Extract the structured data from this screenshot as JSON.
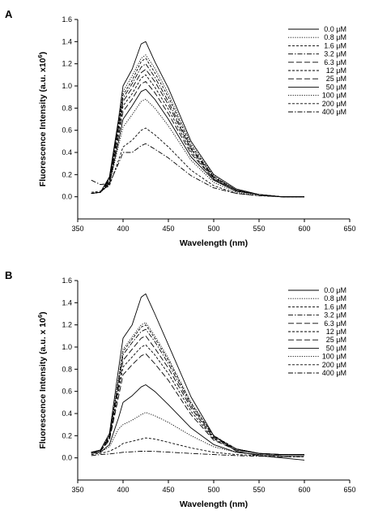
{
  "chart_data": [
    {
      "panel_label": "A",
      "type": "line",
      "xlabel": "Wavelength (nm)",
      "ylabel": "Fluorescence Intensity (a.u. x10",
      "ylabel_sup": "6",
      "ylabel_close": ")",
      "xlim": [
        350,
        650
      ],
      "ylim": [
        -0.2,
        1.6
      ],
      "xticks": [
        350,
        400,
        450,
        500,
        550,
        600,
        650
      ],
      "yticks": [
        0.0,
        0.2,
        0.4,
        0.6,
        0.8,
        1.0,
        1.2,
        1.4,
        1.6
      ],
      "legend_position": "top-right",
      "x": [
        365,
        375,
        385,
        395,
        400,
        410,
        420,
        425,
        435,
        450,
        475,
        500,
        525,
        550,
        575,
        600
      ],
      "series": [
        {
          "name": "0.0 μM",
          "style": "solid",
          "values": [
            0.03,
            0.04,
            0.18,
            0.7,
            1.0,
            1.15,
            1.38,
            1.4,
            1.22,
            0.98,
            0.5,
            0.2,
            0.07,
            0.02,
            0.0,
            0.0
          ]
        },
        {
          "name": "0.8 μM",
          "style": "dotted",
          "values": [
            0.03,
            0.04,
            0.17,
            0.68,
            0.95,
            1.09,
            1.25,
            1.28,
            1.16,
            0.93,
            0.48,
            0.19,
            0.06,
            0.02,
            0.0,
            0.0
          ]
        },
        {
          "name": "1.6 μM",
          "style": "dash-short",
          "values": [
            0.03,
            0.04,
            0.16,
            0.66,
            0.92,
            1.05,
            1.22,
            1.25,
            1.12,
            0.9,
            0.46,
            0.18,
            0.06,
            0.02,
            0.0,
            0.0
          ]
        },
        {
          "name": "3.2 μM",
          "style": "dash-dot",
          "values": [
            0.03,
            0.04,
            0.16,
            0.64,
            0.89,
            1.02,
            1.17,
            1.2,
            1.08,
            0.86,
            0.44,
            0.18,
            0.06,
            0.02,
            0.0,
            0.0
          ]
        },
        {
          "name": "6.3 μM",
          "style": "dash-long",
          "values": [
            0.03,
            0.04,
            0.15,
            0.62,
            0.86,
            0.98,
            1.12,
            1.15,
            1.04,
            0.83,
            0.43,
            0.17,
            0.06,
            0.02,
            0.0,
            0.0
          ]
        },
        {
          "name": "12 μM",
          "style": "dash-short",
          "values": [
            0.03,
            0.04,
            0.14,
            0.58,
            0.82,
            0.93,
            1.07,
            1.1,
            0.99,
            0.79,
            0.41,
            0.16,
            0.05,
            0.02,
            0.0,
            0.0
          ]
        },
        {
          "name": "25 μM",
          "style": "dash-long",
          "values": [
            0.03,
            0.04,
            0.13,
            0.55,
            0.77,
            0.88,
            1.02,
            1.04,
            0.94,
            0.75,
            0.39,
            0.16,
            0.05,
            0.02,
            0.0,
            0.0
          ]
        },
        {
          "name": "50 μM",
          "style": "solid",
          "values": [
            0.03,
            0.04,
            0.12,
            0.5,
            0.7,
            0.82,
            0.95,
            0.97,
            0.88,
            0.7,
            0.36,
            0.15,
            0.05,
            0.02,
            0.0,
            0.0
          ]
        },
        {
          "name": "100 μM",
          "style": "dotted",
          "values": [
            0.03,
            0.04,
            0.11,
            0.46,
            0.63,
            0.74,
            0.86,
            0.88,
            0.8,
            0.64,
            0.33,
            0.13,
            0.04,
            0.01,
            0.0,
            0.0
          ]
        },
        {
          "name": "200 μM",
          "style": "dash-short",
          "values": [
            0.04,
            0.05,
            0.1,
            0.33,
            0.45,
            0.51,
            0.6,
            0.62,
            0.56,
            0.45,
            0.24,
            0.1,
            0.03,
            0.01,
            0.0,
            0.0
          ]
        },
        {
          "name": "400 μM",
          "style": "dash-dot",
          "values": [
            0.15,
            0.11,
            0.12,
            0.3,
            0.4,
            0.4,
            0.46,
            0.48,
            0.43,
            0.35,
            0.19,
            0.08,
            0.03,
            0.01,
            0.0,
            0.0
          ]
        }
      ]
    },
    {
      "panel_label": "B",
      "type": "line",
      "xlabel": "Wavelength (nm)",
      "ylabel": "Fluorescence Intensity (a.u. x 10",
      "ylabel_sup": "6",
      "ylabel_close": ")",
      "xlim": [
        350,
        650
      ],
      "ylim": [
        -0.2,
        1.6
      ],
      "xticks": [
        350,
        400,
        450,
        500,
        550,
        600,
        650
      ],
      "yticks": [
        0.0,
        0.2,
        0.4,
        0.6,
        0.8,
        1.0,
        1.2,
        1.4,
        1.6
      ],
      "legend_position": "top-right",
      "x": [
        365,
        375,
        385,
        395,
        400,
        410,
        420,
        425,
        435,
        450,
        475,
        500,
        525,
        550,
        575,
        600
      ],
      "series": [
        {
          "name": "0.0 μM",
          "style": "solid",
          "values": [
            0.05,
            0.07,
            0.22,
            0.8,
            1.08,
            1.2,
            1.45,
            1.48,
            1.3,
            1.02,
            0.55,
            0.2,
            0.06,
            0.02,
            0.0,
            -0.02
          ]
        },
        {
          "name": "0.8 μM",
          "style": "dotted",
          "values": [
            0.05,
            0.07,
            0.2,
            0.72,
            0.98,
            1.09,
            1.2,
            1.22,
            1.1,
            0.9,
            0.5,
            0.2,
            0.08,
            0.04,
            0.03,
            0.03
          ]
        },
        {
          "name": "1.6 μM",
          "style": "dash-short",
          "values": [
            0.05,
            0.07,
            0.2,
            0.7,
            0.96,
            1.07,
            1.18,
            1.2,
            1.08,
            0.88,
            0.49,
            0.2,
            0.08,
            0.04,
            0.03,
            0.03
          ]
        },
        {
          "name": "3.2 μM",
          "style": "dash-dot",
          "values": [
            0.05,
            0.06,
            0.19,
            0.68,
            0.93,
            1.04,
            1.14,
            1.16,
            1.05,
            0.85,
            0.47,
            0.19,
            0.08,
            0.04,
            0.03,
            0.03
          ]
        },
        {
          "name": "6.3 μM",
          "style": "dash-long",
          "values": [
            0.05,
            0.06,
            0.18,
            0.64,
            0.88,
            0.98,
            1.08,
            1.1,
            0.99,
            0.81,
            0.45,
            0.18,
            0.08,
            0.04,
            0.03,
            0.03
          ]
        },
        {
          "name": "12 μM",
          "style": "dash-short",
          "values": [
            0.05,
            0.06,
            0.17,
            0.6,
            0.82,
            0.91,
            1.0,
            1.02,
            0.93,
            0.76,
            0.42,
            0.17,
            0.07,
            0.04,
            0.03,
            0.03
          ]
        },
        {
          "name": "25 μM",
          "style": "dash-long",
          "values": [
            0.05,
            0.06,
            0.16,
            0.55,
            0.75,
            0.84,
            0.92,
            0.94,
            0.85,
            0.7,
            0.39,
            0.16,
            0.07,
            0.04,
            0.03,
            0.03
          ]
        },
        {
          "name": "50 μM",
          "style": "solid",
          "values": [
            0.04,
            0.05,
            0.12,
            0.36,
            0.5,
            0.56,
            0.64,
            0.66,
            0.6,
            0.48,
            0.27,
            0.12,
            0.05,
            0.03,
            0.02,
            0.02
          ]
        },
        {
          "name": "100 μM",
          "style": "dotted",
          "values": [
            0.04,
            0.05,
            0.1,
            0.26,
            0.3,
            0.34,
            0.39,
            0.41,
            0.38,
            0.32,
            0.2,
            0.1,
            0.05,
            0.03,
            0.02,
            0.02
          ]
        },
        {
          "name": "200 μM",
          "style": "dash-short",
          "values": [
            0.03,
            0.04,
            0.06,
            0.1,
            0.13,
            0.15,
            0.17,
            0.18,
            0.17,
            0.14,
            0.09,
            0.05,
            0.03,
            0.02,
            0.01,
            0.01
          ]
        },
        {
          "name": "400 μM",
          "style": "dash-dot",
          "values": [
            0.02,
            0.03,
            0.035,
            0.045,
            0.05,
            0.055,
            0.06,
            0.06,
            0.058,
            0.052,
            0.04,
            0.03,
            0.02,
            0.015,
            0.01,
            0.01
          ]
        }
      ]
    }
  ]
}
